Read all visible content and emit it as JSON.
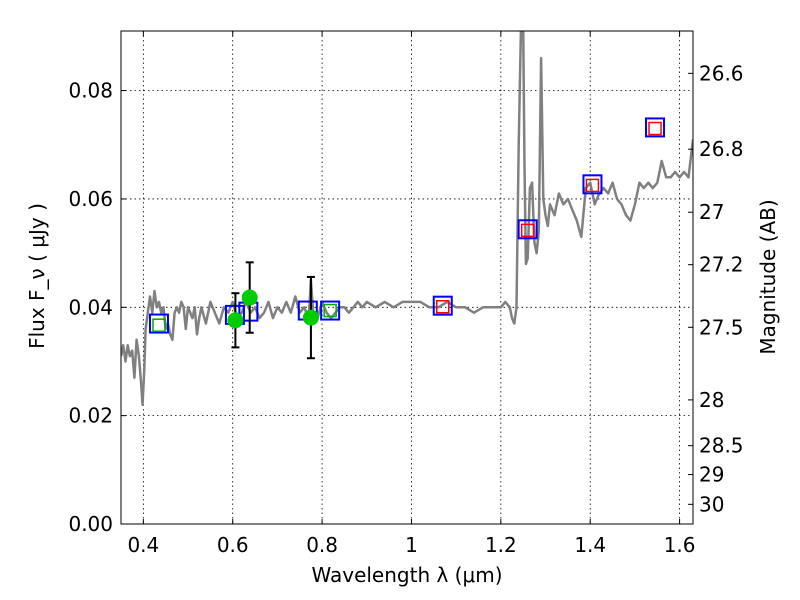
{
  "chart_data": {
    "type": "line",
    "xlabel": "Wavelength  λ (μm)",
    "ylabel": "Flux  F_ν  ( μJy )",
    "ylabel_right": "Magnitude (AB)",
    "xlim": [
      0.35,
      1.63
    ],
    "ylim": [
      0.0,
      0.091
    ],
    "grid": true,
    "x_ticks": [
      {
        "value": 0.4,
        "label": "0.4"
      },
      {
        "value": 0.6,
        "label": "0.6"
      },
      {
        "value": 0.8,
        "label": "0.8"
      },
      {
        "value": 1.0,
        "label": "1"
      },
      {
        "value": 1.2,
        "label": "1.2"
      },
      {
        "value": 1.4,
        "label": "1.4"
      },
      {
        "value": 1.6,
        "label": "1.6"
      }
    ],
    "y_ticks": [
      {
        "value": 0.0,
        "label": "0.00"
      },
      {
        "value": 0.02,
        "label": "0.02"
      },
      {
        "value": 0.04,
        "label": "0.04"
      },
      {
        "value": 0.06,
        "label": "0.06"
      },
      {
        "value": 0.08,
        "label": "0.08"
      }
    ],
    "magnitude_ticks": [
      {
        "value": 26.6,
        "label": "26.6"
      },
      {
        "value": 26.8,
        "label": "26.8"
      },
      {
        "value": 27.0,
        "label": "27"
      },
      {
        "value": 27.2,
        "label": "27.2"
      },
      {
        "value": 27.5,
        "label": "27.5"
      },
      {
        "value": 28.0,
        "label": "28"
      },
      {
        "value": 28.5,
        "label": "28.5"
      },
      {
        "value": 29.0,
        "label": "29"
      },
      {
        "value": 30.0,
        "label": "30"
      }
    ],
    "series": [
      {
        "name": "model spectrum",
        "kind": "line",
        "color": "#808080",
        "x": [
          0.35,
          0.355,
          0.36,
          0.365,
          0.37,
          0.375,
          0.38,
          0.385,
          0.39,
          0.395,
          0.398,
          0.402,
          0.405,
          0.41,
          0.415,
          0.42,
          0.425,
          0.43,
          0.435,
          0.44,
          0.445,
          0.45,
          0.455,
          0.46,
          0.465,
          0.47,
          0.475,
          0.48,
          0.485,
          0.49,
          0.495,
          0.5,
          0.505,
          0.51,
          0.515,
          0.52,
          0.525,
          0.53,
          0.54,
          0.55,
          0.56,
          0.57,
          0.58,
          0.59,
          0.6,
          0.61,
          0.62,
          0.63,
          0.64,
          0.65,
          0.66,
          0.67,
          0.68,
          0.69,
          0.7,
          0.71,
          0.72,
          0.73,
          0.74,
          0.75,
          0.76,
          0.77,
          0.775,
          0.78,
          0.79,
          0.8,
          0.81,
          0.82,
          0.83,
          0.84,
          0.85,
          0.86,
          0.87,
          0.88,
          0.89,
          0.9,
          0.92,
          0.94,
          0.96,
          0.98,
          1.0,
          1.02,
          1.04,
          1.06,
          1.08,
          1.1,
          1.12,
          1.14,
          1.16,
          1.18,
          1.2,
          1.21,
          1.22,
          1.225,
          1.23,
          1.235,
          1.24,
          1.245,
          1.25,
          1.253,
          1.256,
          1.26,
          1.265,
          1.27,
          1.275,
          1.28,
          1.285,
          1.29,
          1.295,
          1.3,
          1.305,
          1.31,
          1.32,
          1.33,
          1.34,
          1.35,
          1.36,
          1.37,
          1.38,
          1.39,
          1.4,
          1.41,
          1.42,
          1.43,
          1.44,
          1.45,
          1.46,
          1.47,
          1.48,
          1.49,
          1.5,
          1.51,
          1.52,
          1.53,
          1.54,
          1.55,
          1.56,
          1.57,
          1.58,
          1.59,
          1.6,
          1.61,
          1.62,
          1.63
        ],
        "y": [
          0.031,
          0.033,
          0.03,
          0.033,
          0.031,
          0.032,
          0.027,
          0.034,
          0.031,
          0.026,
          0.022,
          0.028,
          0.036,
          0.039,
          0.042,
          0.039,
          0.043,
          0.04,
          0.041,
          0.039,
          0.04,
          0.036,
          0.037,
          0.035,
          0.034,
          0.039,
          0.04,
          0.039,
          0.041,
          0.04,
          0.036,
          0.04,
          0.039,
          0.038,
          0.04,
          0.035,
          0.038,
          0.04,
          0.037,
          0.041,
          0.039,
          0.037,
          0.04,
          0.039,
          0.041,
          0.038,
          0.039,
          0.041,
          0.039,
          0.04,
          0.038,
          0.039,
          0.041,
          0.038,
          0.04,
          0.039,
          0.041,
          0.039,
          0.042,
          0.039,
          0.04,
          0.038,
          0.045,
          0.039,
          0.038,
          0.041,
          0.039,
          0.038,
          0.039,
          0.04,
          0.04,
          0.039,
          0.04,
          0.041,
          0.04,
          0.041,
          0.04,
          0.041,
          0.04,
          0.041,
          0.041,
          0.041,
          0.04,
          0.04,
          0.041,
          0.04,
          0.04,
          0.039,
          0.04,
          0.04,
          0.04,
          0.041,
          0.04,
          0.038,
          0.037,
          0.04,
          0.07,
          0.092,
          0.092,
          0.066,
          0.048,
          0.049,
          0.062,
          0.063,
          0.052,
          0.05,
          0.054,
          0.086,
          0.06,
          0.057,
          0.055,
          0.059,
          0.057,
          0.061,
          0.059,
          0.06,
          0.058,
          0.056,
          0.053,
          0.062,
          0.063,
          0.059,
          0.061,
          0.062,
          0.061,
          0.063,
          0.06,
          0.059,
          0.057,
          0.056,
          0.059,
          0.063,
          0.062,
          0.063,
          0.062,
          0.063,
          0.067,
          0.064,
          0.064,
          0.065,
          0.064,
          0.065,
          0.064,
          0.071
        ]
      },
      {
        "name": "blue squares",
        "kind": "square",
        "color": "#0000ff",
        "x": [
          0.435,
          0.605,
          0.635,
          0.768,
          0.818,
          1.07,
          1.26,
          1.405,
          1.545
        ],
        "y": [
          0.037,
          0.0386,
          0.0392,
          0.0394,
          0.0394,
          0.0403,
          0.0544,
          0.0627,
          0.0732
        ]
      },
      {
        "name": "green squares",
        "kind": "square",
        "color": "#00aa00",
        "x": [
          0.435,
          0.818
        ],
        "y": [
          0.0367,
          0.0394
        ]
      },
      {
        "name": "red squares",
        "kind": "square",
        "color": "#ff0000",
        "x": [
          1.07,
          1.26,
          1.405,
          1.545
        ],
        "y": [
          0.0401,
          0.0542,
          0.0625,
          0.073
        ]
      },
      {
        "name": "green points with error bars",
        "kind": "errorbar",
        "color": "#00cc00",
        "x": [
          0.606,
          0.638,
          0.775
        ],
        "y": [
          0.0376,
          0.0418,
          0.0381
        ],
        "yerr": [
          0.005,
          0.0065,
          0.0075
        ]
      }
    ]
  }
}
